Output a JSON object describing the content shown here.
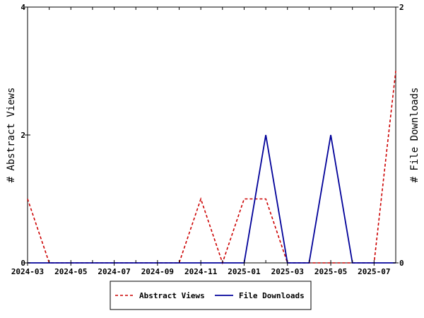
{
  "chart_data": {
    "type": "line",
    "x": [
      "2024-03",
      "2024-04",
      "2024-05",
      "2024-06",
      "2024-07",
      "2024-08",
      "2024-09",
      "2024-10",
      "2024-11",
      "2024-12",
      "2025-01",
      "2025-02",
      "2025-03",
      "2025-04",
      "2025-05",
      "2025-06",
      "2025-07",
      "2025-08"
    ],
    "x_tick_labels": [
      "2024-03",
      "2024-05",
      "2024-07",
      "2024-09",
      "2024-11",
      "2025-01",
      "2025-03",
      "2025-05",
      "2025-07"
    ],
    "series": [
      {
        "name": "Abstract Views",
        "axis": "left",
        "color": "#cc0000",
        "dash": "dashed",
        "values": [
          1,
          0,
          0,
          0,
          0,
          0,
          0,
          0,
          1,
          0,
          1,
          1,
          0,
          0,
          0,
          0,
          0,
          3
        ]
      },
      {
        "name": "File Downloads",
        "axis": "right",
        "color": "#000099",
        "dash": "solid",
        "values": [
          0,
          0,
          0,
          0,
          0,
          0,
          0,
          0,
          0,
          0,
          0,
          1,
          0,
          0,
          1,
          0,
          0,
          0
        ]
      }
    ],
    "ylabel_left": "# Abstract Views",
    "ylabel_right": "# File Downloads",
    "ylim_left": [
      0,
      4
    ],
    "ylim_right": [
      0,
      2
    ],
    "yticks_left": [
      0,
      2,
      4
    ],
    "yticks_right": [
      0,
      2
    ],
    "grid": false,
    "legend_position": "bottom"
  }
}
